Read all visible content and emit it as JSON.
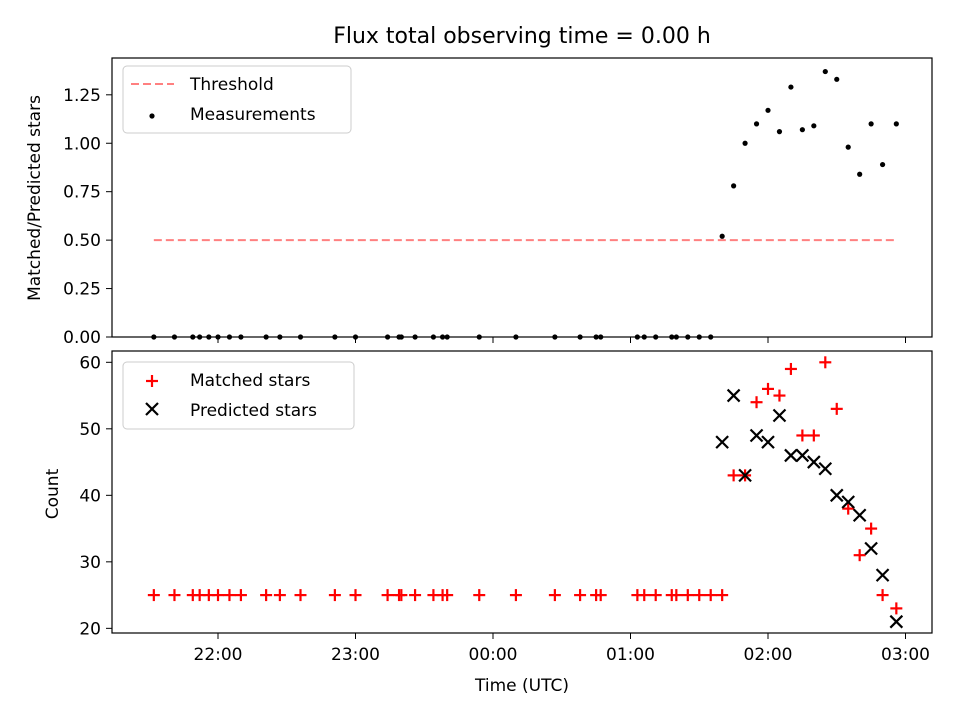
{
  "chart_data": [
    {
      "type": "scatter",
      "title": "Flux total observing time = 0.00 h",
      "xlabel": "",
      "ylabel": "Matched/Predicted stars",
      "x_ticks": [
        "22:00",
        "23:00",
        "00:00",
        "01:00",
        "02:00",
        "03:00"
      ],
      "y_ticks": [
        "0.00",
        "0.25",
        "0.50",
        "0.75",
        "1.00",
        "1.25"
      ],
      "ylim": [
        0,
        1.44
      ],
      "grid": false,
      "legend": "top-left",
      "series": [
        {
          "name": "Threshold",
          "style": "dashed-line",
          "color": "#ff8080",
          "points": [
            [
              "21:32",
              0.5
            ],
            [
              "02:56",
              0.5
            ]
          ]
        },
        {
          "name": "Measurements",
          "style": "dot",
          "color": "#000000",
          "points": [
            [
              "21:32",
              0
            ],
            [
              "21:41",
              0
            ],
            [
              "21:49",
              0
            ],
            [
              "21:52",
              0
            ],
            [
              "21:56",
              0
            ],
            [
              "22:00",
              0
            ],
            [
              "22:05",
              0
            ],
            [
              "22:10",
              0
            ],
            [
              "22:21",
              0
            ],
            [
              "22:27",
              0
            ],
            [
              "22:36",
              0
            ],
            [
              "22:51",
              0
            ],
            [
              "23:00",
              0
            ],
            [
              "23:14",
              0
            ],
            [
              "23:19",
              0
            ],
            [
              "23:20",
              0
            ],
            [
              "23:26",
              0
            ],
            [
              "23:34",
              0
            ],
            [
              "23:38",
              0
            ],
            [
              "23:40",
              0
            ],
            [
              "23:54",
              0
            ],
            [
              "00:10",
              0
            ],
            [
              "00:27",
              0
            ],
            [
              "00:38",
              0
            ],
            [
              "00:45",
              0
            ],
            [
              "00:47",
              0
            ],
            [
              "01:03",
              0
            ],
            [
              "01:06",
              0
            ],
            [
              "01:11",
              0
            ],
            [
              "01:18",
              0
            ],
            [
              "01:20",
              0
            ],
            [
              "01:25",
              0
            ],
            [
              "01:30",
              0
            ],
            [
              "01:35",
              0
            ],
            [
              "01:40",
              0.52
            ],
            [
              "01:45",
              0.78
            ],
            [
              "01:50",
              1.0
            ],
            [
              "01:55",
              1.1
            ],
            [
              "02:00",
              1.17
            ],
            [
              "02:05",
              1.06
            ],
            [
              "02:10",
              1.29
            ],
            [
              "02:15",
              1.07
            ],
            [
              "02:20",
              1.09
            ],
            [
              "02:25",
              1.37
            ],
            [
              "02:30",
              1.33
            ],
            [
              "02:35",
              0.98
            ],
            [
              "02:40",
              0.84
            ],
            [
              "02:45",
              1.1
            ],
            [
              "02:50",
              0.89
            ],
            [
              "02:56",
              1.1
            ]
          ]
        }
      ]
    },
    {
      "type": "scatter",
      "title": "",
      "xlabel": "Time (UTC)",
      "ylabel": "Count",
      "x_ticks": [
        "22:00",
        "23:00",
        "00:00",
        "01:00",
        "02:00",
        "03:00"
      ],
      "y_ticks": [
        "20",
        "30",
        "40",
        "50",
        "60"
      ],
      "ylim": [
        19.3,
        61.7
      ],
      "grid": false,
      "legend": "top-left",
      "series": [
        {
          "name": "Matched stars",
          "marker": "plus",
          "color": "#ff0000",
          "points": [
            [
              "21:32",
              25
            ],
            [
              "21:41",
              25
            ],
            [
              "21:49",
              25
            ],
            [
              "21:52",
              25
            ],
            [
              "21:56",
              25
            ],
            [
              "22:00",
              25
            ],
            [
              "22:05",
              25
            ],
            [
              "22:10",
              25
            ],
            [
              "22:21",
              25
            ],
            [
              "22:27",
              25
            ],
            [
              "22:36",
              25
            ],
            [
              "22:51",
              25
            ],
            [
              "23:00",
              25
            ],
            [
              "23:14",
              25
            ],
            [
              "23:19",
              25
            ],
            [
              "23:20",
              25
            ],
            [
              "23:26",
              25
            ],
            [
              "23:34",
              25
            ],
            [
              "23:38",
              25
            ],
            [
              "23:40",
              25
            ],
            [
              "23:54",
              25
            ],
            [
              "00:10",
              25
            ],
            [
              "00:27",
              25
            ],
            [
              "00:38",
              25
            ],
            [
              "00:45",
              25
            ],
            [
              "00:47",
              25
            ],
            [
              "01:03",
              25
            ],
            [
              "01:06",
              25
            ],
            [
              "01:11",
              25
            ],
            [
              "01:18",
              25
            ],
            [
              "01:20",
              25
            ],
            [
              "01:25",
              25
            ],
            [
              "01:30",
              25
            ],
            [
              "01:35",
              25
            ],
            [
              "01:40",
              25
            ],
            [
              "01:45",
              43
            ],
            [
              "01:50",
              43
            ],
            [
              "01:55",
              54
            ],
            [
              "02:00",
              56
            ],
            [
              "02:05",
              55
            ],
            [
              "02:10",
              59
            ],
            [
              "02:15",
              49
            ],
            [
              "02:20",
              49
            ],
            [
              "02:25",
              60
            ],
            [
              "02:30",
              53
            ],
            [
              "02:35",
              38
            ],
            [
              "02:40",
              31
            ],
            [
              "02:45",
              35
            ],
            [
              "02:50",
              25
            ],
            [
              "02:56",
              23
            ]
          ]
        },
        {
          "name": "Predicted stars",
          "marker": "x",
          "color": "#000000",
          "points": [
            [
              "01:40",
              48
            ],
            [
              "01:45",
              55
            ],
            [
              "01:50",
              43
            ],
            [
              "01:55",
              49
            ],
            [
              "02:00",
              48
            ],
            [
              "02:05",
              52
            ],
            [
              "02:10",
              46
            ],
            [
              "02:15",
              46
            ],
            [
              "02:20",
              45
            ],
            [
              "02:25",
              44
            ],
            [
              "02:30",
              40
            ],
            [
              "02:35",
              39
            ],
            [
              "02:40",
              37
            ],
            [
              "02:45",
              32
            ],
            [
              "02:50",
              28
            ],
            [
              "02:56",
              21
            ]
          ]
        }
      ]
    }
  ]
}
